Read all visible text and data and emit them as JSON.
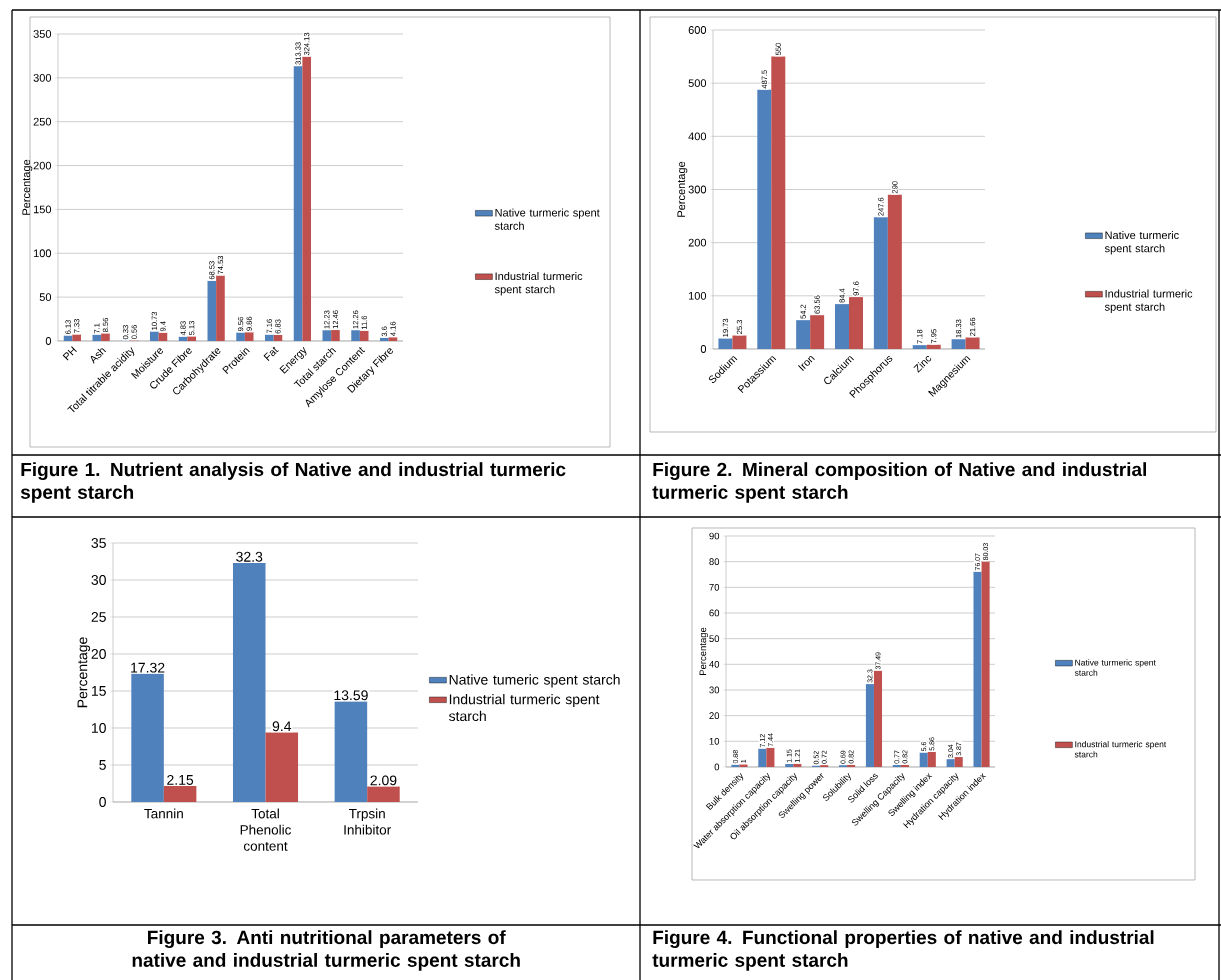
{
  "chart_data": [
    {
      "type": "bar",
      "title": "Figure 1. Nutrient analysis of Native and industrial turmeric spent starch",
      "ylabel": "Percentage",
      "categories": [
        "PH",
        "Ash",
        "Total titrable acidity",
        "Moisture",
        "Crude Fibre",
        "Carbohydrate",
        "Protein",
        "Fat",
        "Energy",
        "Total starch",
        "Amylose Content",
        "Dietary Fibre"
      ],
      "series": [
        {
          "name": "Native turmeric spent starch",
          "color": "#4f81bd",
          "values": [
            6.13,
            7.1,
            0.33,
            10.73,
            4.83,
            68.53,
            9.56,
            7.16,
            313.33,
            12.23,
            12.26,
            3.6
          ]
        },
        {
          "name": "Industrial turmeric spent starch",
          "color": "#c0504d",
          "values": [
            7.33,
            8.56,
            0.56,
            9.4,
            5.13,
            74.53,
            9.86,
            6.83,
            324.13,
            12.46,
            11.6,
            4.16
          ]
        }
      ],
      "ylim": [
        0,
        350
      ],
      "yticks": [
        0,
        50,
        100,
        150,
        200,
        250,
        300,
        350
      ],
      "grid": "y",
      "legend": "right",
      "data_labels": true
    },
    {
      "type": "bar",
      "title": "Figure 2. Mineral composition of Native and industrial turmeric spent starch",
      "ylabel": "Percentage",
      "categories": [
        "Sodium",
        "Potassium",
        "Iron",
        "Calcium",
        "Phosphorus",
        "Zinc",
        "Magnesium"
      ],
      "series": [
        {
          "name": "Native turmeric spent starch",
          "color": "#4f81bd",
          "values": [
            19.73,
            487.5,
            54.2,
            84.4,
            247.6,
            7.18,
            18.33
          ]
        },
        {
          "name": "Industrial turmeric spent starch",
          "color": "#c0504d",
          "values": [
            25.3,
            550,
            63.56,
            97.6,
            290,
            7.95,
            21.66
          ]
        }
      ],
      "ylim": [
        0,
        600
      ],
      "yticks": [
        0,
        100,
        200,
        300,
        400,
        500,
        600
      ],
      "grid": "y",
      "legend": "right",
      "data_labels": true
    },
    {
      "type": "bar",
      "title": "Figure 3. Anti nutritional parameters of native and industrial turmeric spent starch",
      "ylabel": "Percentage",
      "categories": [
        "Tannin",
        "Total Phenolic content",
        "Trpsin Inhibitor"
      ],
      "series": [
        {
          "name": "Native tumeric spent starch",
          "color": "#4f81bd",
          "values": [
            17.32,
            32.3,
            13.59
          ]
        },
        {
          "name": "Industrial turmeric spent starch",
          "color": "#c0504d",
          "values": [
            2.15,
            9.4,
            2.09
          ]
        }
      ],
      "ylim": [
        0,
        35
      ],
      "yticks": [
        0,
        5,
        10,
        15,
        20,
        25,
        30,
        35
      ],
      "grid": "y",
      "legend": "right",
      "data_labels": true
    },
    {
      "type": "bar",
      "title": "Figure 4. Functional properties of native and industrial turmeric spent starch",
      "ylabel": "Percentage",
      "categories": [
        "Bulk density",
        "Water absorption capacity",
        "Oil absorption capacity",
        "Swelling power",
        "Solubility",
        "Solid loss",
        "Swelling Capacity",
        "Swelling index",
        "Hydration capacity",
        "Hydration index"
      ],
      "series": [
        {
          "name": "Native turmeric spent starch",
          "color": "#4f81bd",
          "values": [
            0.88,
            7.12,
            1.15,
            0.52,
            0.69,
            32.3,
            0.77,
            5.6,
            3.04,
            76.07
          ]
        },
        {
          "name": "Industrial turmeric spent starch",
          "color": "#c0504d",
          "values": [
            1,
            7.44,
            1.21,
            0.72,
            0.82,
            37.49,
            0.82,
            5.86,
            3.87,
            80.03
          ]
        }
      ],
      "ylim": [
        0,
        90
      ],
      "yticks": [
        0,
        10,
        20,
        30,
        40,
        50,
        60,
        70,
        80,
        90
      ],
      "grid": "y",
      "legend": "right",
      "data_labels": true
    }
  ]
}
